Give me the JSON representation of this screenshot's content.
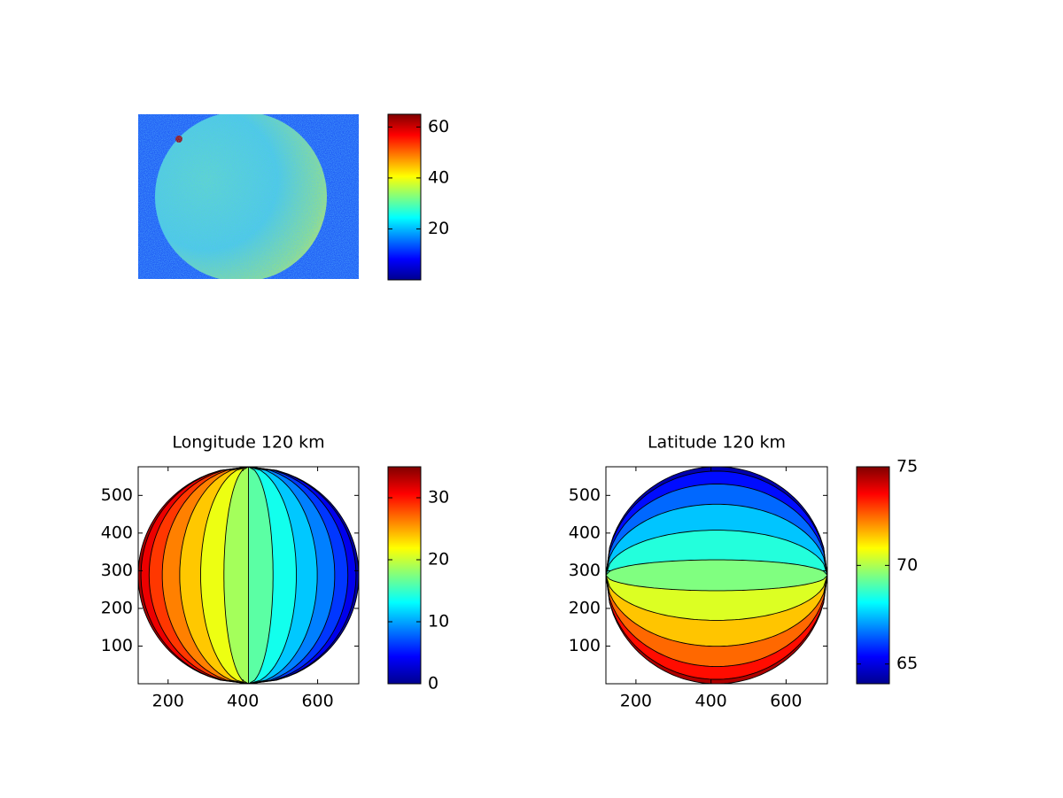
{
  "chart_data": [
    {
      "type": "image",
      "clim": [
        0,
        65
      ],
      "cticks": [
        20,
        40,
        60
      ]
    },
    {
      "type": "contour",
      "title": "Longitude 120 km",
      "xlim": [
        120,
        710
      ],
      "ylim": [
        0,
        576
      ],
      "xticks": [
        200,
        400,
        600
      ],
      "yticks": [
        100,
        200,
        300,
        400,
        500
      ],
      "levels": [
        0,
        2.5,
        5,
        7.5,
        10,
        12.5,
        15,
        17.5,
        20,
        22.5,
        25,
        27.5,
        30,
        32.5,
        35
      ],
      "clim": [
        0,
        35
      ],
      "cticks": [
        0,
        10,
        20,
        30
      ]
    },
    {
      "type": "contour",
      "title": "Latitude 120 km",
      "xlim": [
        120,
        710
      ],
      "ylim": [
        0,
        576
      ],
      "xticks": [
        200,
        400,
        600
      ],
      "yticks": [
        100,
        200,
        300,
        400,
        500
      ],
      "levels": [
        64,
        65,
        66,
        67,
        68,
        69,
        70,
        71,
        72,
        73,
        74,
        75
      ],
      "clim": [
        64,
        75
      ],
      "cticks": [
        65,
        70,
        75
      ]
    }
  ]
}
